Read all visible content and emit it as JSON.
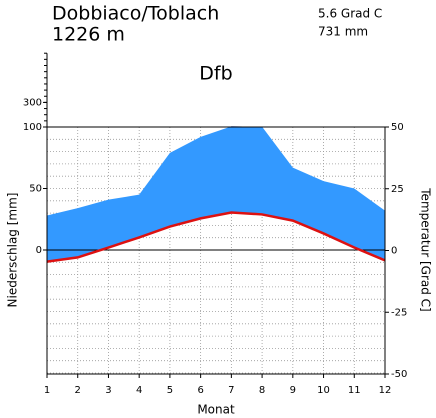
{
  "chart_data": {
    "type": "climate",
    "title": "Dobbiaco/Toblach",
    "subtitle": "1226 m",
    "mean_temperature": "5.6 Grad C",
    "annual_precipitation": "731 mm",
    "climate_class": "Dfb",
    "xlabel": "Monat",
    "ylabel": "Niederschlag [mm]",
    "y2label": "Temperatur [Grad C]",
    "x": [
      1,
      2,
      3,
      4,
      5,
      6,
      7,
      8,
      9,
      10,
      11,
      12
    ],
    "xlim": [
      1,
      12
    ],
    "xticks": [
      1,
      2,
      3,
      4,
      5,
      6,
      7,
      8,
      9,
      10,
      11,
      12
    ],
    "ylim": [
      -100,
      700
    ],
    "yticks": [
      0,
      50,
      100,
      300
    ],
    "y2lim": [
      -50,
      50
    ],
    "y2ticks": [
      50,
      25,
      0,
      -25,
      -50
    ],
    "grid": true,
    "series": [
      {
        "name": "Niederschlag",
        "color": "#3399ff",
        "values": [
          28,
          34,
          41,
          45,
          79,
          92,
          105,
          102,
          67,
          56,
          50,
          32
        ]
      },
      {
        "name": "Temperatur",
        "color": "#dd1111",
        "axis": "y2",
        "values": [
          -4.5,
          -2.8,
          1.2,
          5.3,
          9.7,
          13.0,
          15.4,
          14.6,
          12.1,
          6.9,
          1.2,
          -4.0
        ]
      }
    ]
  }
}
